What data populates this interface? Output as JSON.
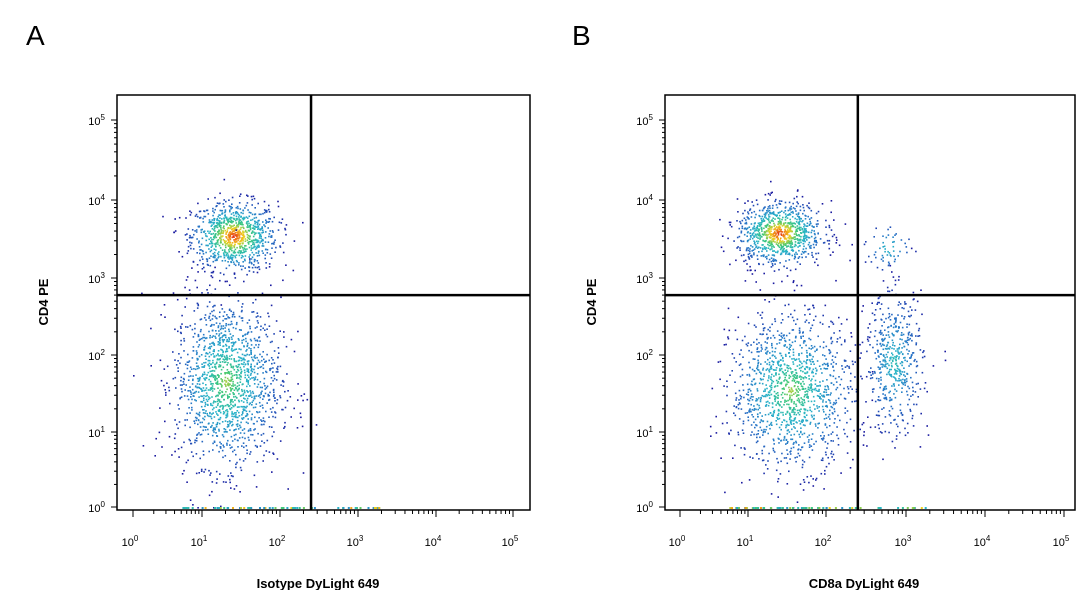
{
  "panels": [
    {
      "letter": "A",
      "xlabel": "Isotype DyLight 649",
      "ylabel": "CD4 PE"
    },
    {
      "letter": "B",
      "xlabel": "CD8a DyLight 649",
      "ylabel": "CD4 PE"
    }
  ],
  "colors": {
    "axis": "#000000",
    "density_low": "#1a1aa0",
    "density_mid": "#2aa7c9",
    "density_high": "#e03010",
    "density_peak": "#f0d020"
  },
  "chart_data": [
    {
      "type": "scatter",
      "title": "",
      "xlabel": "Isotype DyLight 649",
      "ylabel": "CD4 PE",
      "x_scale": "log",
      "y_scale": "log",
      "xlim": [
        1,
        100000
      ],
      "ylim": [
        1,
        100000
      ],
      "x_ticks": [
        "10^0",
        "10^1",
        "10^2",
        "10^3",
        "10^4",
        "10^5"
      ],
      "y_ticks": [
        "10^0",
        "10^1",
        "10^2",
        "10^3",
        "10^4",
        "10^5"
      ],
      "quadrant_gate": {
        "x": 250,
        "y": 600
      },
      "populations": [
        {
          "center_x": 25,
          "center_y": 3500,
          "spread_x_decades": 0.28,
          "spread_y_decades": 0.22,
          "relative_size": 1.0
        },
        {
          "center_x": 20,
          "center_y": 45,
          "spread_x_decades": 0.35,
          "spread_y_decades": 0.55,
          "relative_size": 1.6
        }
      ]
    },
    {
      "type": "scatter",
      "title": "",
      "xlabel": "CD8a DyLight 649",
      "ylabel": "CD4 PE",
      "x_scale": "log",
      "y_scale": "log",
      "xlim": [
        1,
        100000
      ],
      "ylim": [
        1,
        100000
      ],
      "x_ticks": [
        "10^0",
        "10^1",
        "10^2",
        "10^3",
        "10^4",
        "10^5"
      ],
      "y_ticks": [
        "10^0",
        "10^1",
        "10^2",
        "10^3",
        "10^4",
        "10^5"
      ],
      "quadrant_gate": {
        "x": 250,
        "y": 600
      },
      "populations": [
        {
          "center_x": 25,
          "center_y": 3800,
          "spread_x_decades": 0.28,
          "spread_y_decades": 0.2,
          "relative_size": 1.0
        },
        {
          "center_x": 35,
          "center_y": 35,
          "spread_x_decades": 0.4,
          "spread_y_decades": 0.5,
          "relative_size": 1.4
        },
        {
          "center_x": 700,
          "center_y": 80,
          "spread_x_decades": 0.18,
          "spread_y_decades": 0.45,
          "relative_size": 0.55
        },
        {
          "center_x": 600,
          "center_y": 2500,
          "spread_x_decades": 0.15,
          "spread_y_decades": 0.15,
          "relative_size": 0.06
        }
      ]
    }
  ]
}
